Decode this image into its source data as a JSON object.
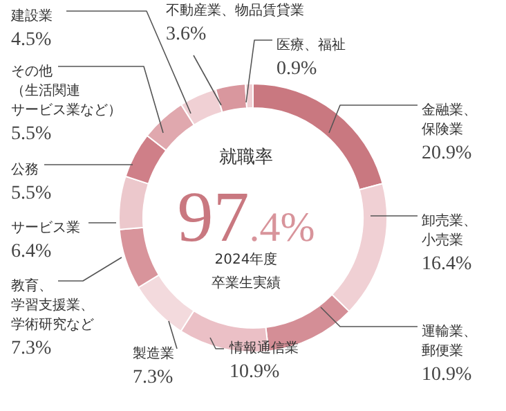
{
  "chart_data": {
    "type": "donut",
    "categories": [
      "金融業、保険業",
      "卸売業、小売業",
      "運輸業、郵便業",
      "情報通信業",
      "製造業",
      "教育、学習支援業、学術研究など",
      "サービス業",
      "公務",
      "その他（生活関連サービス業など）",
      "建設業",
      "不動産業、物品賃貸業",
      "医療、福祉"
    ],
    "values": [
      20.9,
      16.4,
      10.9,
      10.9,
      7.3,
      7.3,
      6.4,
      5.5,
      5.5,
      4.5,
      3.6,
      0.9
    ],
    "value_labels": [
      "20.9%",
      "16.4%",
      "10.9%",
      "10.9%",
      "7.3%",
      "7.3%",
      "6.4%",
      "5.5%",
      "5.5%",
      "4.5%",
      "3.6%",
      "0.9%"
    ],
    "colors": [
      "#c97880",
      "#f0d0d4",
      "#d48e96",
      "#ebc0c6",
      "#f3dadd",
      "#d8949b",
      "#ecc8cc",
      "#cf7f88",
      "#e0a8ae",
      "#f0d0d4",
      "#d9979e",
      "#f0d0d4"
    ],
    "annotations": [
      "就職率",
      "97.4%",
      "2024年度",
      "卒業生実績"
    ],
    "legend": false
  }
}
